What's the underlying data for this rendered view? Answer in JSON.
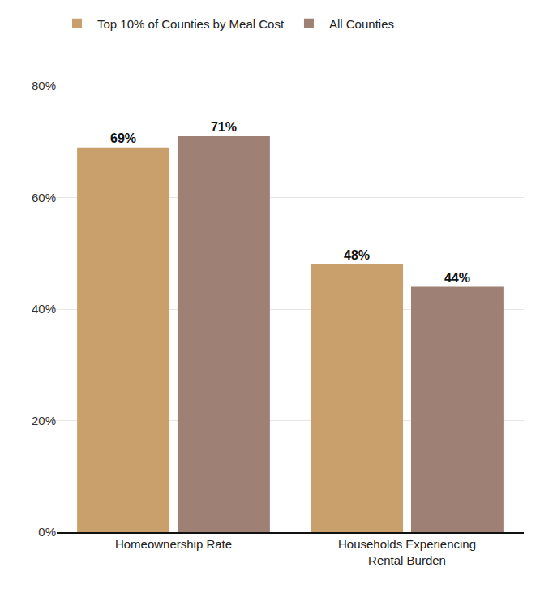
{
  "chart_data": {
    "type": "bar",
    "categories": [
      "Homeownership Rate",
      "Households Experiencing Rental Burden"
    ],
    "series": [
      {
        "name": "Top 10% of Counties by Meal Cost",
        "color": "#c9a06c",
        "values": [
          69,
          48
        ],
        "value_labels": [
          "69%",
          "48%"
        ]
      },
      {
        "name": "All Counties",
        "color": "#9e8075",
        "values": [
          71,
          44
        ],
        "value_labels": [
          "71%",
          "44%"
        ]
      }
    ],
    "ylim": [
      0,
      80
    ],
    "yticks": [
      {
        "value": 0,
        "label": "0%"
      },
      {
        "value": 20,
        "label": "20%"
      },
      {
        "value": 40,
        "label": "40%"
      },
      {
        "value": 60,
        "label": "60%"
      },
      {
        "value": 80,
        "label": "80%"
      }
    ],
    "grid": true,
    "legend": "top left",
    "data_labels": true
  }
}
